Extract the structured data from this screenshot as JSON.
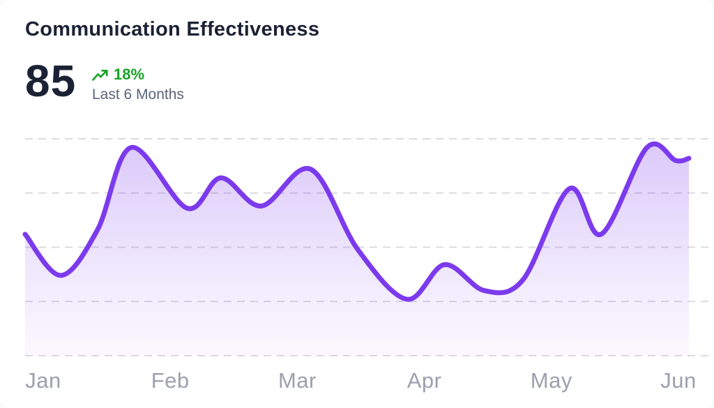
{
  "header": {
    "title": "Communication Effectiveness",
    "score": "85",
    "delta": "18%",
    "period": "Last 6 Months",
    "trend_icon": "trending-up"
  },
  "colors": {
    "accent": "#7C3AED",
    "fill_top": "rgba(124,58,237,0.28)",
    "fill_mid": "rgba(124,58,237,0.13)",
    "fill_bottom": "rgba(124,58,237,0.03)",
    "positive": "#17A325",
    "title_text": "#1B2234",
    "muted_text": "#5A6477",
    "axis_text": "#9BA0AC",
    "gridline": "#DBDAE0"
  },
  "chart_data": {
    "type": "area",
    "title": "Communication Effectiveness",
    "xlabel": "",
    "ylabel": "",
    "categories": [
      "Jan",
      "Feb",
      "Mar",
      "Apr",
      "May",
      "Jun"
    ],
    "ylim": [
      0,
      100
    ],
    "grid_values": [
      100,
      75,
      50,
      25,
      0
    ],
    "grid_style": "horizontal-dashed",
    "legend": false,
    "points": [
      {
        "x": 0.0,
        "v": 56
      },
      {
        "x": 0.054,
        "v": 37
      },
      {
        "x": 0.109,
        "v": 58
      },
      {
        "x": 0.16,
        "v": 96
      },
      {
        "x": 0.244,
        "v": 68
      },
      {
        "x": 0.295,
        "v": 82
      },
      {
        "x": 0.356,
        "v": 69
      },
      {
        "x": 0.43,
        "v": 86
      },
      {
        "x": 0.501,
        "v": 49
      },
      {
        "x": 0.575,
        "v": 26
      },
      {
        "x": 0.632,
        "v": 42
      },
      {
        "x": 0.692,
        "v": 30
      },
      {
        "x": 0.75,
        "v": 35
      },
      {
        "x": 0.82,
        "v": 77
      },
      {
        "x": 0.868,
        "v": 56
      },
      {
        "x": 0.937,
        "v": 96
      },
      {
        "x": 0.98,
        "v": 90
      },
      {
        "x": 1.0,
        "v": 91
      }
    ]
  }
}
